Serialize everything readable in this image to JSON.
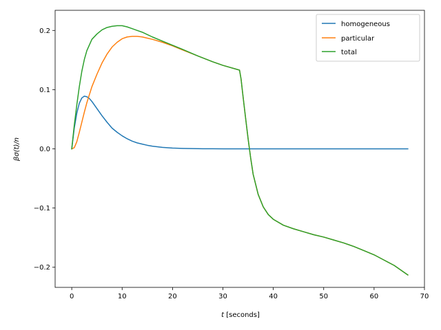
{
  "chart_data": {
    "type": "line",
    "xlabel_var": "t",
    "xlabel_unit": "[seconds]",
    "ylabel": "βσ(t)/n",
    "xlim": [
      -3.3,
      70
    ],
    "ylim": [
      -0.234,
      0.234
    ],
    "xticks": [
      0,
      10,
      20,
      30,
      40,
      50,
      60,
      70
    ],
    "yticks": [
      -0.2,
      -0.1,
      0.0,
      0.1,
      0.2
    ],
    "xtick_labels": [
      "0",
      "10",
      "20",
      "30",
      "40",
      "50",
      "60",
      "70"
    ],
    "ytick_labels": [
      "−0.2",
      "−0.1",
      "0.0",
      "0.1",
      "0.2"
    ],
    "grid": false,
    "legend_position": "top-right",
    "series": [
      {
        "name": "homogeneous",
        "color": "#1f77b4",
        "x": [
          0,
          0.5,
          1,
          1.5,
          2,
          2.5,
          3,
          3.5,
          4,
          5,
          6,
          7,
          8,
          9,
          10,
          11,
          12,
          13,
          14,
          15,
          16,
          18,
          20,
          22,
          24,
          26,
          28,
          30,
          35,
          40,
          45,
          50,
          55,
          60,
          66.7
        ],
        "y": [
          0,
          0.035,
          0.06,
          0.077,
          0.086,
          0.089,
          0.088,
          0.085,
          0.08,
          0.068,
          0.056,
          0.045,
          0.035,
          0.028,
          0.022,
          0.017,
          0.013,
          0.01,
          0.008,
          0.006,
          0.0045,
          0.0025,
          0.0013,
          0.0007,
          0.0004,
          0.0002,
          0.0001,
          5e-05,
          0,
          0,
          0,
          0,
          0,
          0,
          0
        ]
      },
      {
        "name": "particular",
        "color": "#ff7f0e",
        "x": [
          0,
          0.5,
          1,
          1.5,
          2,
          2.5,
          3,
          4,
          5,
          6,
          7,
          8,
          9,
          10,
          11,
          12,
          13,
          14,
          15,
          16,
          18,
          20,
          22,
          25,
          28,
          30,
          33.3,
          33.6,
          34,
          34.5,
          35,
          35.5,
          36,
          37,
          38,
          39,
          40,
          42,
          44,
          46,
          48,
          50,
          52,
          54,
          56,
          58,
          60,
          62,
          64,
          66.7
        ],
        "y": [
          0,
          0.002,
          0.012,
          0.028,
          0.045,
          0.062,
          0.078,
          0.105,
          0.126,
          0.145,
          0.16,
          0.172,
          0.18,
          0.186,
          0.189,
          0.19,
          0.19,
          0.189,
          0.187,
          0.185,
          0.18,
          0.174,
          0.167,
          0.157,
          0.147,
          0.141,
          0.133,
          0.118,
          0.088,
          0.052,
          0.017,
          -0.015,
          -0.043,
          -0.077,
          -0.098,
          -0.111,
          -0.119,
          -0.129,
          -0.135,
          -0.14,
          -0.145,
          -0.149,
          -0.154,
          -0.159,
          -0.165,
          -0.172,
          -0.179,
          -0.188,
          -0.197,
          -0.213
        ]
      },
      {
        "name": "total",
        "color": "#2ca02c",
        "x": [
          0,
          0.5,
          1,
          1.5,
          2,
          2.5,
          3,
          4,
          5,
          6,
          7,
          8,
          9,
          10,
          11,
          12,
          13,
          14,
          15,
          16,
          18,
          20,
          22,
          25,
          28,
          30,
          33.3,
          33.6,
          34,
          34.5,
          35,
          35.5,
          36,
          37,
          38,
          39,
          40,
          42,
          44,
          46,
          48,
          50,
          52,
          54,
          56,
          58,
          60,
          62,
          64,
          66.7
        ],
        "y": [
          0,
          0.04,
          0.074,
          0.105,
          0.131,
          0.151,
          0.166,
          0.185,
          0.194,
          0.201,
          0.205,
          0.207,
          0.208,
          0.208,
          0.206,
          0.203,
          0.2,
          0.197,
          0.193,
          0.189,
          0.182,
          0.175,
          0.168,
          0.157,
          0.147,
          0.141,
          0.133,
          0.118,
          0.088,
          0.052,
          0.017,
          -0.015,
          -0.043,
          -0.077,
          -0.098,
          -0.111,
          -0.119,
          -0.129,
          -0.135,
          -0.14,
          -0.145,
          -0.149,
          -0.154,
          -0.159,
          -0.165,
          -0.172,
          -0.179,
          -0.188,
          -0.197,
          -0.213
        ]
      }
    ]
  }
}
